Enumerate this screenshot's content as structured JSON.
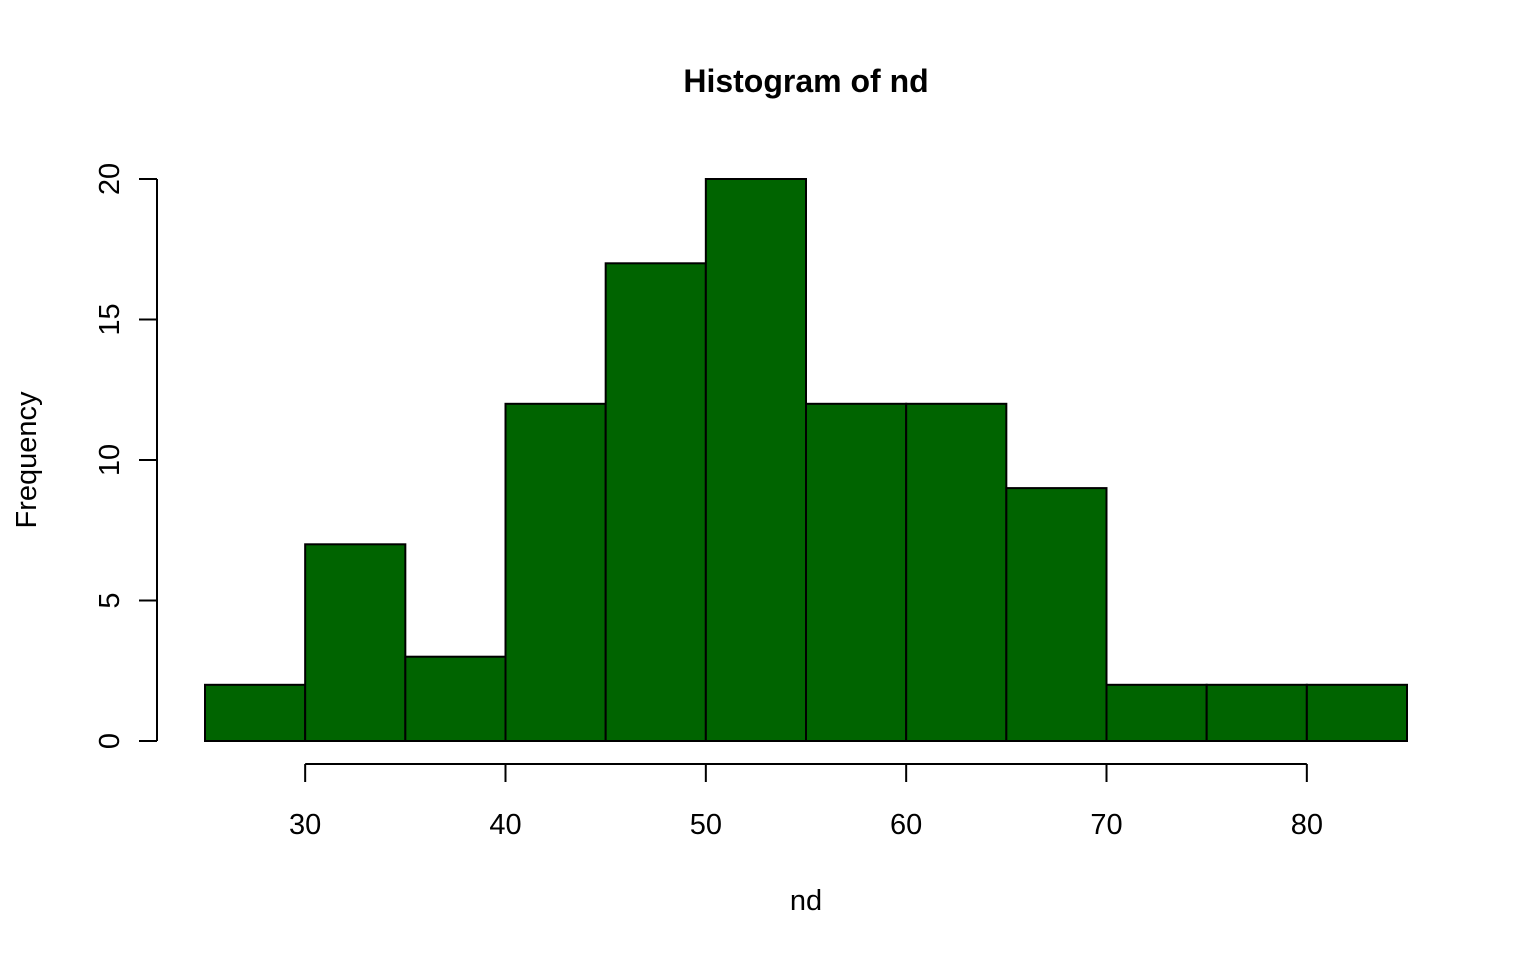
{
  "chart_data": {
    "type": "bar",
    "chart_subtype": "histogram",
    "title": "Histogram of nd",
    "xlabel": "nd",
    "ylabel": "Frequency",
    "bins": [
      {
        "from": 25,
        "to": 30,
        "count": 2
      },
      {
        "from": 30,
        "to": 35,
        "count": 7
      },
      {
        "from": 35,
        "to": 40,
        "count": 3
      },
      {
        "from": 40,
        "to": 45,
        "count": 12
      },
      {
        "from": 45,
        "to": 50,
        "count": 17
      },
      {
        "from": 50,
        "to": 55,
        "count": 20
      },
      {
        "from": 55,
        "to": 60,
        "count": 12
      },
      {
        "from": 60,
        "to": 65,
        "count": 12
      },
      {
        "from": 65,
        "to": 70,
        "count": 9
      },
      {
        "from": 70,
        "to": 75,
        "count": 2
      },
      {
        "from": 75,
        "to": 80,
        "count": 2
      },
      {
        "from": 80,
        "to": 85,
        "count": 2
      }
    ],
    "x_ticks": [
      30,
      40,
      50,
      60,
      70,
      80
    ],
    "y_ticks": [
      0,
      5,
      10,
      15,
      20
    ],
    "x_tick_labels": [
      "30",
      "40",
      "50",
      "60",
      "70",
      "80"
    ],
    "y_tick_labels": [
      "0",
      "5",
      "10",
      "15",
      "20"
    ],
    "xlim": [
      25,
      85
    ],
    "ylim": [
      0,
      20
    ],
    "grid": false,
    "legend": "none",
    "colors": {
      "bar_fill": "#006400",
      "bar_stroke": "#000000",
      "axis": "#000000",
      "background": "#ffffff"
    }
  }
}
